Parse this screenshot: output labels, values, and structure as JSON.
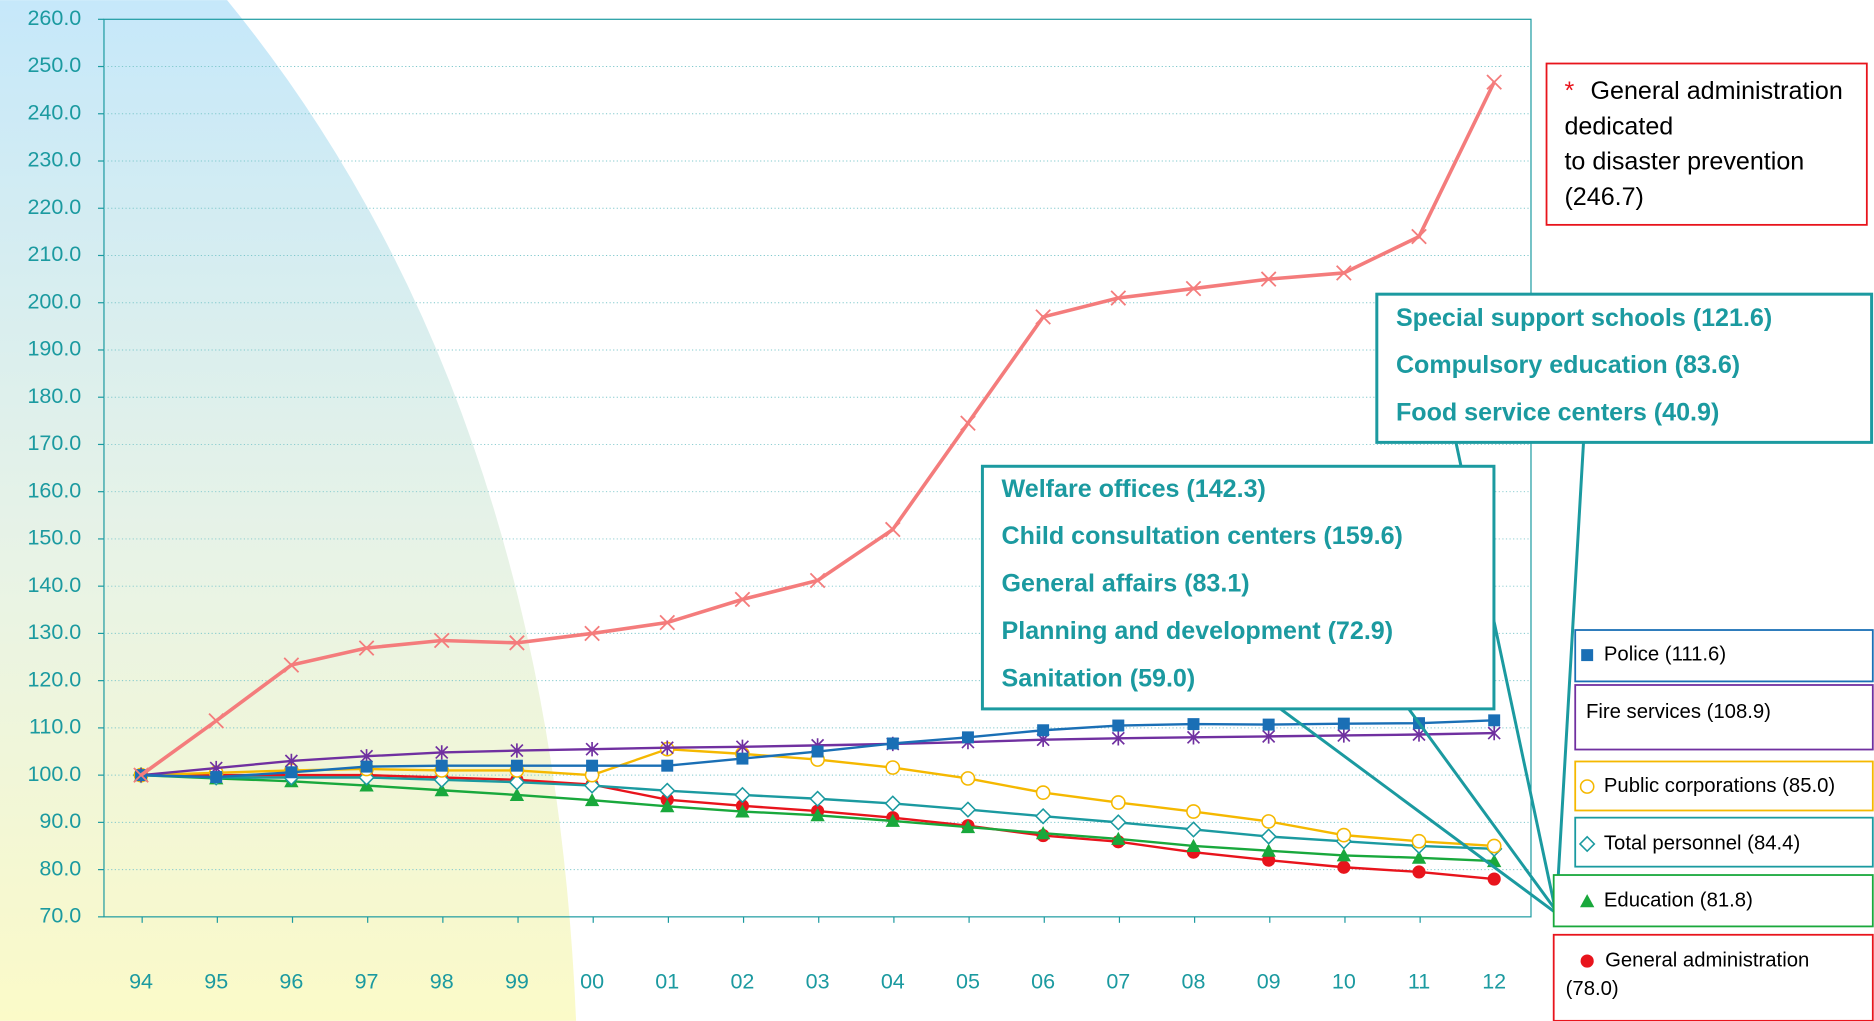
{
  "chart_data": {
    "type": "line",
    "categories": [
      "94",
      "95",
      "96",
      "97",
      "98",
      "99",
      "00",
      "01",
      "02",
      "03",
      "04",
      "05",
      "06",
      "07",
      "08",
      "09",
      "10",
      "11",
      "12"
    ],
    "ylim": [
      70,
      260
    ],
    "yticks": [
      {
        "value": 70,
        "label": "70.0"
      },
      {
        "value": 80,
        "label": "80.0"
      },
      {
        "value": 90,
        "label": "90.0"
      },
      {
        "value": 100,
        "label": "100.0"
      },
      {
        "value": 110,
        "label": "110.0"
      },
      {
        "value": 120,
        "label": "120.0"
      },
      {
        "value": 130,
        "label": "130.0"
      },
      {
        "value": 140,
        "label": "140.0"
      },
      {
        "value": 150,
        "label": "150.0"
      },
      {
        "value": 160,
        "label": "160.0"
      },
      {
        "value": 170,
        "label": "170.0"
      },
      {
        "value": 180,
        "label": "180.0"
      },
      {
        "value": 190,
        "label": "190.0"
      },
      {
        "value": 200,
        "label": "200.0"
      },
      {
        "value": 210,
        "label": "210.0"
      },
      {
        "value": 220,
        "label": "220.0"
      },
      {
        "value": 230,
        "label": "230.0"
      },
      {
        "value": 240,
        "label": "240.0"
      },
      {
        "value": 250,
        "label": "250.0"
      },
      {
        "value": 260,
        "label": "260.0"
      }
    ],
    "grid": true,
    "note_mark": "*",
    "series": [
      {
        "name": "General administration dedicated to disaster prevention (246.7)",
        "color": "#f47c7c",
        "marker": "x",
        "values": [
          100,
          111.5,
          123.3,
          126.9,
          128.5,
          128,
          130,
          132.3,
          137.2,
          141.2,
          152,
          174.5,
          197,
          201,
          203,
          205,
          206.3,
          214,
          246.7
        ]
      },
      {
        "name": "Police (111.6)",
        "color": "#1a6fb5",
        "marker": "square",
        "values": [
          100,
          99.6,
          100.6,
          101.8,
          102,
          102,
          102,
          102,
          103.5,
          105,
          106.7,
          108,
          109.5,
          110.5,
          110.8,
          110.7,
          110.9,
          111,
          111.6
        ]
      },
      {
        "name": "Fire services (108.9)",
        "color": "#7030a0",
        "marker": "asterisk",
        "values": [
          100,
          101.5,
          103,
          104,
          104.8,
          105.2,
          105.5,
          105.8,
          106,
          106.3,
          106.6,
          107,
          107.5,
          107.8,
          108,
          108.2,
          108.4,
          108.6,
          108.9
        ]
      },
      {
        "name": "Public corporations (85.0)",
        "color": "#f5b800",
        "marker": "circle-open",
        "values": [
          100,
          100.5,
          101,
          101.3,
          101,
          101,
          100,
          105.5,
          104.5,
          103.3,
          101.6,
          99.3,
          96.3,
          94.2,
          92.3,
          90.2,
          87.3,
          86,
          85
        ]
      },
      {
        "name": "Total personnel (84.4)",
        "color": "#1b9aa0",
        "marker": "diamond-open",
        "values": [
          100,
          99.5,
          99.5,
          99.5,
          99,
          98.5,
          97.8,
          96.7,
          95.8,
          95,
          94,
          92.7,
          91.3,
          90,
          88.5,
          87,
          86,
          85,
          84.4
        ]
      },
      {
        "name": "Education (81.8)",
        "color": "#19a83c",
        "marker": "triangle",
        "values": [
          100,
          99.3,
          98.7,
          97.8,
          96.8,
          95.8,
          94.7,
          93.4,
          92.3,
          91.5,
          90.3,
          89,
          87.7,
          86.5,
          85,
          84,
          83,
          82.5,
          81.8
        ]
      },
      {
        "name": "General administration (78.0)",
        "color": "#e8141c",
        "marker": "circle",
        "values": [
          100,
          100,
          100,
          100,
          99.5,
          99,
          98,
          94.8,
          93.5,
          92.4,
          91,
          89.3,
          87.2,
          85.9,
          83.7,
          82,
          80.5,
          79.5,
          78.0
        ]
      }
    ],
    "annotations": [
      {
        "lines": [
          "Special support schools (121.6)",
          "Compulsory education (83.6)",
          "Food service centers (40.9)"
        ]
      },
      {
        "lines": [
          "Welfare offices (142.3)",
          "Child consultation centers (159.6)",
          "General affairs (83.1)",
          "Planning and development (72.9)",
          "Sanitation (59.0)"
        ]
      }
    ]
  }
}
